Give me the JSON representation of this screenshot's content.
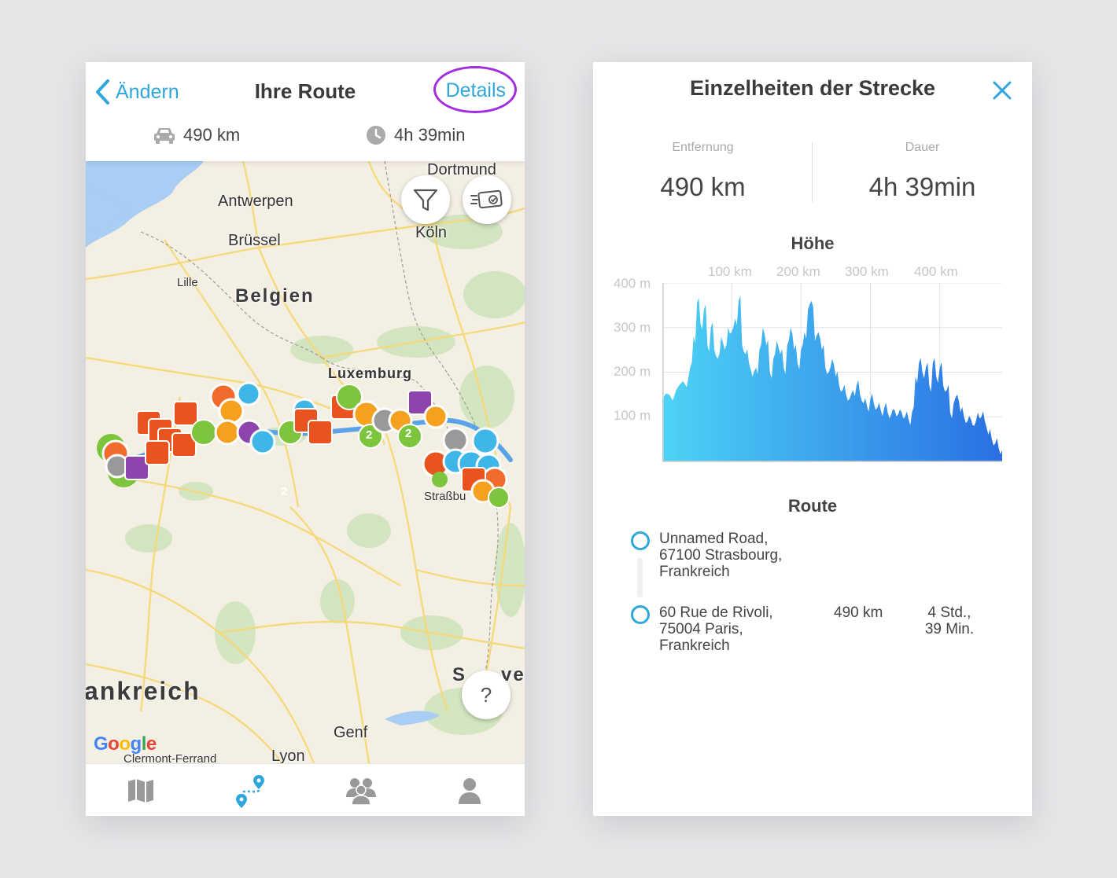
{
  "left": {
    "header": {
      "back_label": "Ändern",
      "title": "Ihre Route",
      "details_label": "Details",
      "distance": "490 km",
      "duration": "4h 39min"
    },
    "map": {
      "labels": [
        "Dortmund",
        "Antwerpen",
        "Brüssel",
        "Köln",
        "Lille",
        "Belgien",
        "Luxemburg",
        "Straßbu",
        "ankreich",
        "S",
        "ve",
        "Genf",
        "Lyon",
        "Clermont-Ferrand"
      ],
      "cluster_count": "2",
      "help_label": "?",
      "attribution": {
        "G": "G",
        "o1": "o",
        "o2": "o",
        "g": "g",
        "l": "l",
        "e": "e"
      }
    },
    "tabs": [
      "map",
      "route",
      "community",
      "profile"
    ],
    "colors": {
      "accent": "#2ea7dc",
      "highlight": "#a12de1"
    }
  },
  "right": {
    "title": "Einzelheiten der Strecke",
    "distance_label": "Entfernung",
    "distance_value": "490 km",
    "duration_label": "Dauer",
    "duration_value": "4h 39min",
    "elevation_title": "Höhe",
    "route_title": "Route",
    "route": [
      {
        "address": "Unnamed Road,\n67100 Strasbourg,\nFrankreich",
        "distance": "",
        "time": ""
      },
      {
        "address": "60 Rue de Rivoli,\n75004 Paris,\nFrankreich",
        "distance": "490 km",
        "time": "4 Std.,\n39 Min."
      }
    ]
  },
  "chart_data": {
    "type": "area",
    "title": "Höhe",
    "x_unit": "km",
    "y_unit": "m",
    "x_ticks": [
      "100 km",
      "200 km",
      "300 km",
      "400 km"
    ],
    "y_ticks": [
      "100 m",
      "200 m",
      "300 m",
      "400 m"
    ],
    "xlim": [
      0,
      490
    ],
    "ylim": [
      0,
      400
    ],
    "grid": true,
    "x": [
      0,
      10,
      20,
      30,
      40,
      45,
      50,
      55,
      60,
      65,
      70,
      75,
      80,
      85,
      90,
      95,
      100,
      105,
      110,
      115,
      120,
      125,
      130,
      135,
      140,
      145,
      150,
      155,
      160,
      165,
      170,
      175,
      180,
      185,
      190,
      195,
      200,
      205,
      210,
      215,
      220,
      225,
      230,
      235,
      240,
      245,
      250,
      255,
      260,
      265,
      270,
      275,
      280,
      285,
      290,
      295,
      300,
      305,
      310,
      315,
      320,
      325,
      330,
      335,
      340,
      345,
      350,
      355,
      360,
      365,
      370,
      375,
      380,
      385,
      390,
      395,
      400,
      405,
      410,
      415,
      420,
      425,
      430,
      435,
      440,
      445,
      450,
      455,
      460,
      465,
      470,
      475,
      480,
      485,
      490
    ],
    "y": [
      140,
      150,
      160,
      180,
      210,
      280,
      355,
      310,
      340,
      260,
      300,
      250,
      230,
      280,
      250,
      300,
      290,
      320,
      360,
      260,
      240,
      220,
      190,
      210,
      250,
      300,
      260,
      200,
      230,
      270,
      240,
      210,
      260,
      300,
      250,
      220,
      250,
      290,
      340,
      360,
      270,
      290,
      250,
      210,
      200,
      230,
      190,
      170,
      160,
      150,
      140,
      160,
      170,
      150,
      130,
      125,
      140,
      130,
      120,
      115,
      120,
      110,
      105,
      115,
      105,
      110,
      100,
      95,
      110,
      190,
      220,
      200,
      210,
      170,
      220,
      190,
      210,
      170,
      160,
      110,
      130,
      150,
      110,
      100,
      90,
      95,
      80,
      110,
      100,
      90,
      60,
      50,
      40,
      30,
      25
    ]
  }
}
